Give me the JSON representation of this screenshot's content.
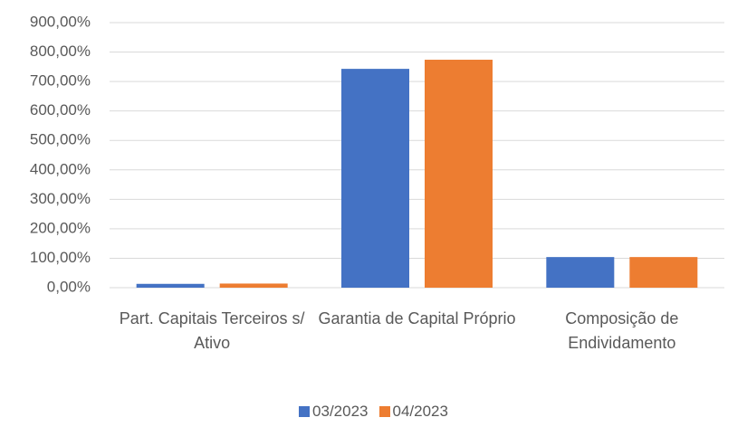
{
  "chart_data": {
    "type": "bar",
    "categories": [
      "Part. Capitais Terceiros s/ Ativo",
      "Garantia de Capital Próprio",
      "Composição de Endividamento"
    ],
    "series": [
      {
        "name": "03/2023",
        "color": "#4472c4",
        "values": [
          13,
          743,
          104
        ]
      },
      {
        "name": "04/2023",
        "color": "#ed7d31",
        "values": [
          14,
          774,
          104
        ]
      }
    ],
    "ylim": [
      0,
      900
    ],
    "yticks": [
      {
        "value": 0,
        "label": "0,00%"
      },
      {
        "value": 100,
        "label": "100,00%"
      },
      {
        "value": 200,
        "label": "200,00%"
      },
      {
        "value": 300,
        "label": "300,00%"
      },
      {
        "value": 400,
        "label": "400,00%"
      },
      {
        "value": 500,
        "label": "500,00%"
      },
      {
        "value": 600,
        "label": "600,00%"
      },
      {
        "value": 700,
        "label": "700,00%"
      },
      {
        "value": 800,
        "label": "800,00%"
      },
      {
        "value": 900,
        "label": "900,00%"
      }
    ],
    "grid": true
  }
}
